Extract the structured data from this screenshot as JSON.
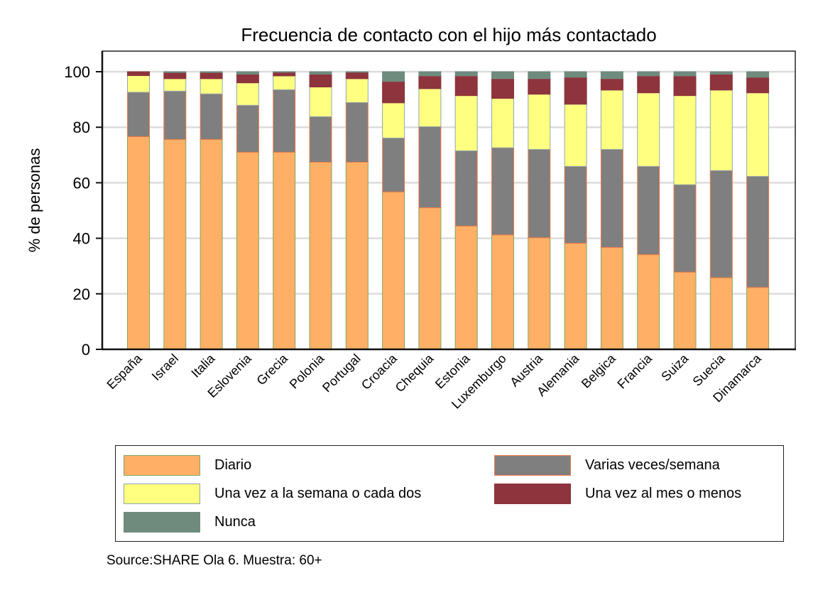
{
  "chart_data": {
    "type": "bar",
    "stacked": true,
    "title": "Frecuencia de contacto con el hijo más contactado",
    "xlabel": "",
    "ylabel": "% de personas",
    "ylim": [
      0,
      100
    ],
    "yticks": [
      0,
      20,
      40,
      60,
      80,
      100
    ],
    "grid": true,
    "categories": [
      "España",
      "Israel",
      "Italia",
      "Eslovenia",
      "Grecia",
      "Polonia",
      "Portugal",
      "Croacia",
      "Chequia",
      "Estonia",
      "Luxemburgo",
      "Austria",
      "Alemania",
      "Belgica",
      "Francia",
      "Suiza",
      "Suecia",
      "Dinamarca"
    ],
    "series": [
      {
        "name": "Diario",
        "color": "#FFB066",
        "stroke": "#7FA860",
        "values": [
          76.6,
          75.6,
          75.6,
          71.0,
          71.0,
          67.4,
          67.4,
          56.7,
          51.0,
          44.4,
          41.2,
          40.2,
          38.2,
          36.7,
          34.1,
          27.8,
          25.8,
          22.3
        ]
      },
      {
        "name": "Varias veces/semana",
        "color": "#7F7F7F",
        "stroke": "#F07B4A",
        "values": [
          16.0,
          17.4,
          16.4,
          16.9,
          22.5,
          16.4,
          21.5,
          19.4,
          29.2,
          27.1,
          31.4,
          31.8,
          27.7,
          35.3,
          31.8,
          31.5,
          38.6,
          40.0
        ]
      },
      {
        "name": "Una vez a la semana o cada dos",
        "color": "#FFFF80",
        "stroke": "#90A8B0",
        "values": [
          6.0,
          4.5,
          5.5,
          8.1,
          5.0,
          10.7,
          8.6,
          12.7,
          13.7,
          19.9,
          17.8,
          19.9,
          22.4,
          21.4,
          26.5,
          32.1,
          29.0,
          30.1
        ]
      },
      {
        "name": "Una vez al mes o menos",
        "color": "#8E343C",
        "stroke": "#8E343C",
        "values": [
          1.4,
          2.2,
          2.2,
          3.1,
          1.3,
          4.6,
          2.3,
          7.7,
          4.6,
          7.1,
          7.1,
          5.6,
          9.7,
          4.1,
          6.1,
          7.1,
          5.7,
          5.6
        ]
      },
      {
        "name": "Nunca",
        "color": "#6E8B7E",
        "stroke": "#6E8B7E",
        "values": [
          0.0,
          0.3,
          0.3,
          0.9,
          0.2,
          0.9,
          0.2,
          3.5,
          1.5,
          1.5,
          2.5,
          2.5,
          2.0,
          2.5,
          1.5,
          1.5,
          0.9,
          2.0
        ]
      }
    ],
    "legend_position": "bottom"
  },
  "legend": {
    "items": [
      {
        "label": "Diario",
        "color": "#FFB066",
        "border": "#7FA860"
      },
      {
        "label": "Varias veces/semana",
        "color": "#7F7F7F",
        "border": "#F07B4A"
      },
      {
        "label": "Una vez a la semana o cada dos",
        "color": "#FFFF80",
        "border": "#90A8B0"
      },
      {
        "label": "Una vez al mes o menos",
        "color": "#8E343C",
        "border": "#8E343C"
      },
      {
        "label": "Nunca",
        "color": "#6E8B7E",
        "border": "#6E8B7E"
      }
    ]
  },
  "source_note": "Source:SHARE Ola 6. Muestra: 60+"
}
